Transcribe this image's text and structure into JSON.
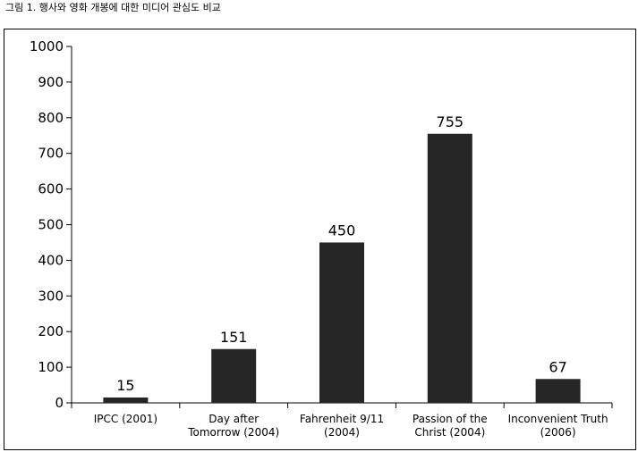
{
  "figure": {
    "caption": "그림 1. 행사와 영화 개봉에 대한 미디어 관심도 비교"
  },
  "colors": {
    "bar": "#262626",
    "axis": "#000000",
    "frame": "#000000"
  },
  "chart_data": {
    "type": "bar",
    "title": "",
    "xlabel": "",
    "ylabel": "",
    "ylim": [
      0,
      1000
    ],
    "yticks": [
      0,
      100,
      200,
      300,
      400,
      500,
      600,
      700,
      800,
      900,
      1000
    ],
    "grid": false,
    "categories": [
      [
        "IPCC (2001)"
      ],
      [
        "Day  after",
        "Tomorrow (2004)"
      ],
      [
        "Fahrenheit 9/11",
        "(2004)"
      ],
      [
        "Passion of the",
        "Christ (2004)"
      ],
      [
        "Inconvenient Truth",
        "(2006)"
      ]
    ],
    "values": [
      15,
      151,
      450,
      755,
      67
    ],
    "data_labels": [
      "15",
      "151",
      "450",
      "755",
      "67"
    ]
  }
}
